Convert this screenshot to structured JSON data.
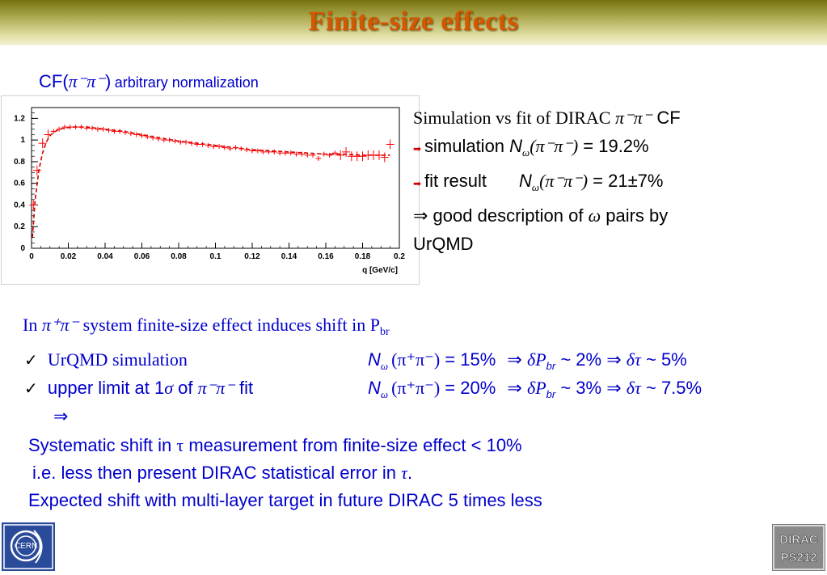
{
  "title": "Finite-size effects",
  "cf_header": {
    "prefix": "CF(",
    "symbol": "π⁻π⁻",
    "suffix": ")",
    "note": "arbitrary normalization"
  },
  "chart_data": {
    "type": "line",
    "title": "",
    "xlabel": "q  [GeV/c]",
    "ylabel": "",
    "xlim": [
      0,
      0.2
    ],
    "ylim": [
      0,
      1.3
    ],
    "x_ticks": [
      "0",
      "0.02",
      "0.04",
      "0.06",
      "0.08",
      "0.1",
      "0.12",
      "0.14",
      "0.16",
      "0.18",
      "0.2"
    ],
    "y_ticks": [
      "0",
      "0.2",
      "0.4",
      "0.6",
      "0.8",
      "1",
      "1.2"
    ],
    "colors": {
      "simulation": "#ff0000",
      "fit": "#cc0000"
    },
    "series": [
      {
        "style": "crosses",
        "x": [
          0.001,
          0.003,
          0.006,
          0.009,
          0.012,
          0.015,
          0.018,
          0.021,
          0.024,
          0.027,
          0.03,
          0.033,
          0.036,
          0.039,
          0.042,
          0.045,
          0.048,
          0.051,
          0.054,
          0.057,
          0.06,
          0.063,
          0.066,
          0.069,
          0.072,
          0.075,
          0.078,
          0.081,
          0.084,
          0.087,
          0.09,
          0.093,
          0.096,
          0.099,
          0.102,
          0.105,
          0.108,
          0.111,
          0.114,
          0.117,
          0.12,
          0.123,
          0.126,
          0.129,
          0.132,
          0.135,
          0.138,
          0.141,
          0.144,
          0.147,
          0.15,
          0.153,
          0.156,
          0.159,
          0.162,
          0.165,
          0.168,
          0.171,
          0.174,
          0.177,
          0.18,
          0.183,
          0.186,
          0.189,
          0.192,
          0.195
        ],
        "y": [
          0.4,
          0.72,
          0.97,
          1.05,
          1.08,
          1.1,
          1.12,
          1.12,
          1.12,
          1.12,
          1.11,
          1.11,
          1.1,
          1.1,
          1.09,
          1.08,
          1.08,
          1.07,
          1.06,
          1.05,
          1.04,
          1.03,
          1.02,
          1.01,
          1.0,
          1.0,
          0.99,
          0.98,
          0.98,
          0.97,
          0.96,
          0.96,
          0.95,
          0.94,
          0.94,
          0.93,
          0.92,
          0.93,
          0.92,
          0.91,
          0.9,
          0.9,
          0.89,
          0.89,
          0.89,
          0.88,
          0.88,
          0.88,
          0.87,
          0.87,
          0.86,
          0.86,
          0.83,
          0.87,
          0.86,
          0.88,
          0.86,
          0.89,
          0.85,
          0.85,
          0.85,
          0.86,
          0.86,
          0.86,
          0.84,
          0.96
        ]
      },
      {
        "style": "dashed",
        "x": [
          0.0005,
          0.002,
          0.004,
          0.006,
          0.008,
          0.01,
          0.012,
          0.015,
          0.018,
          0.022,
          0.026,
          0.03,
          0.035,
          0.04,
          0.05,
          0.06,
          0.07,
          0.08,
          0.09,
          0.1,
          0.11,
          0.12,
          0.13,
          0.14,
          0.15,
          0.16,
          0.17,
          0.18,
          0.19,
          0.195
        ],
        "y": [
          0.1,
          0.45,
          0.72,
          0.88,
          0.98,
          1.04,
          1.07,
          1.1,
          1.11,
          1.12,
          1.12,
          1.12,
          1.11,
          1.1,
          1.08,
          1.05,
          1.02,
          0.99,
          0.97,
          0.95,
          0.93,
          0.91,
          0.9,
          0.89,
          0.88,
          0.87,
          0.87,
          0.86,
          0.86,
          0.86
        ]
      }
    ]
  },
  "sim_box": {
    "line1_a": "Simulation vs fit of DIRAC ",
    "line1_sym": "π⁻π⁻",
    "line1_b": " CF",
    "line2_label": "simulation ",
    "line2_N": "N",
    "line2_sub": "ω",
    "line2_paren": "(π⁻π⁻)",
    "line2_val": " = 19.2%",
    "line3_label": "fit result",
    "line3_N": "N",
    "line3_sub": "ω",
    "line3_paren": "(π⁻π⁻)",
    "line3_val": " = 21±7%",
    "line4_arrow": "⇒",
    "line4_a": " good description of ",
    "line4_omega": "ω",
    "line4_b": " pairs by",
    "line5": "UrQMD"
  },
  "shift_line": {
    "a": "In ",
    "sym": "π⁺π⁻",
    "b": " system finite-size effect induces shift in P",
    "sub": "br"
  },
  "rows": [
    {
      "check": "✓",
      "label": "UrQMD simulation",
      "N": "N",
      "sub": "ω",
      "paren": "(π⁺π⁻)",
      "eq": " = 15%",
      "arrow1": "⇒",
      "d1": "δP",
      "d1sub": "br",
      "v1": " ~ 2%",
      "arrow2": "⇒",
      "d2": "δτ",
      "v2": " ~ 5%"
    },
    {
      "check": "✓",
      "label_a": "upper limit at 1",
      "label_sigma": "σ",
      "label_b": " of ",
      "label_sym": "π⁻π⁻",
      "label_c": " fit",
      "N": "N",
      "sub": "ω",
      "paren": "(π⁺π⁻)",
      "eq": " = 20%",
      "arrow1": "⇒",
      "d1": "δP",
      "d1sub": "br",
      "v1": " ~ 3%",
      "arrow2": "⇒",
      "d2": "δτ",
      "v2": " ~ 7.5%"
    }
  ],
  "arrow_line": "⇒",
  "conclusion": {
    "line1_a": "Systematic shift in ",
    "line1_tau": "τ",
    "line1_b": " measurement from finite-size effect < 10%",
    "line2_a": "i.e. less then present DIRAC statistical error in ",
    "line2_tau": "τ",
    "line2_b": ".",
    "line3": "Expected shift with multi-layer target in future DIRAC 5 times less"
  },
  "logos": {
    "left": "CERN",
    "right_1": "DIRAC",
    "right_2": "PS212"
  }
}
